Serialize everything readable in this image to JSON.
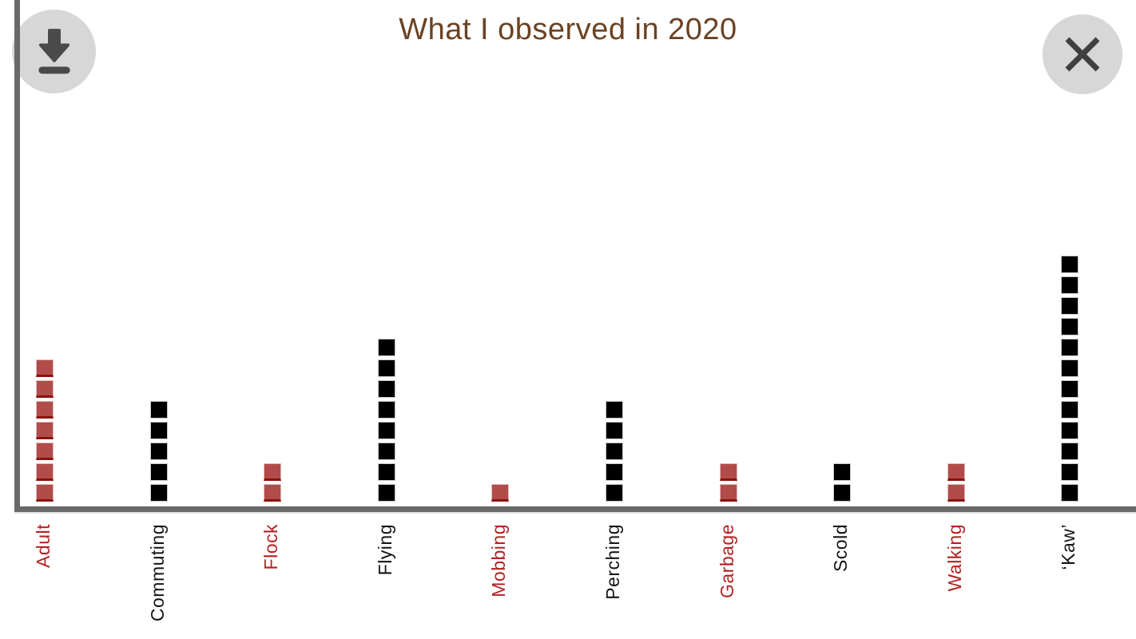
{
  "window": {
    "title": "What I observed in 2020",
    "download_button": {
      "icon": "download-icon"
    },
    "close_button": {
      "icon": "close-icon"
    }
  },
  "chart_data": {
    "type": "bar",
    "subtype": "waffle-unit-column",
    "title": "What I observed in 2020",
    "categories": [
      "Adult",
      "Commuting",
      "Flock",
      "Flying",
      "Mobbing",
      "Perching",
      "Garbage",
      "Scold",
      "Walking",
      "‘Kaw’"
    ],
    "values": [
      7,
      5,
      2,
      8,
      1,
      5,
      2,
      2,
      2,
      12
    ],
    "series_colors": [
      "red",
      "black",
      "red",
      "black",
      "red",
      "black",
      "red",
      "black",
      "red",
      "black"
    ],
    "unit_value": 1,
    "xlabel": "",
    "ylabel": "",
    "ylim": [
      0,
      12
    ],
    "grid": false,
    "legend": "none",
    "palette": {
      "red_square": "#b24c4a",
      "red_square_border_bottom": "#8a120c",
      "black_square": "#000000",
      "red_label": "#b22222",
      "black_label": "#141414",
      "title": "#6b4223",
      "axis": "#696969"
    }
  }
}
